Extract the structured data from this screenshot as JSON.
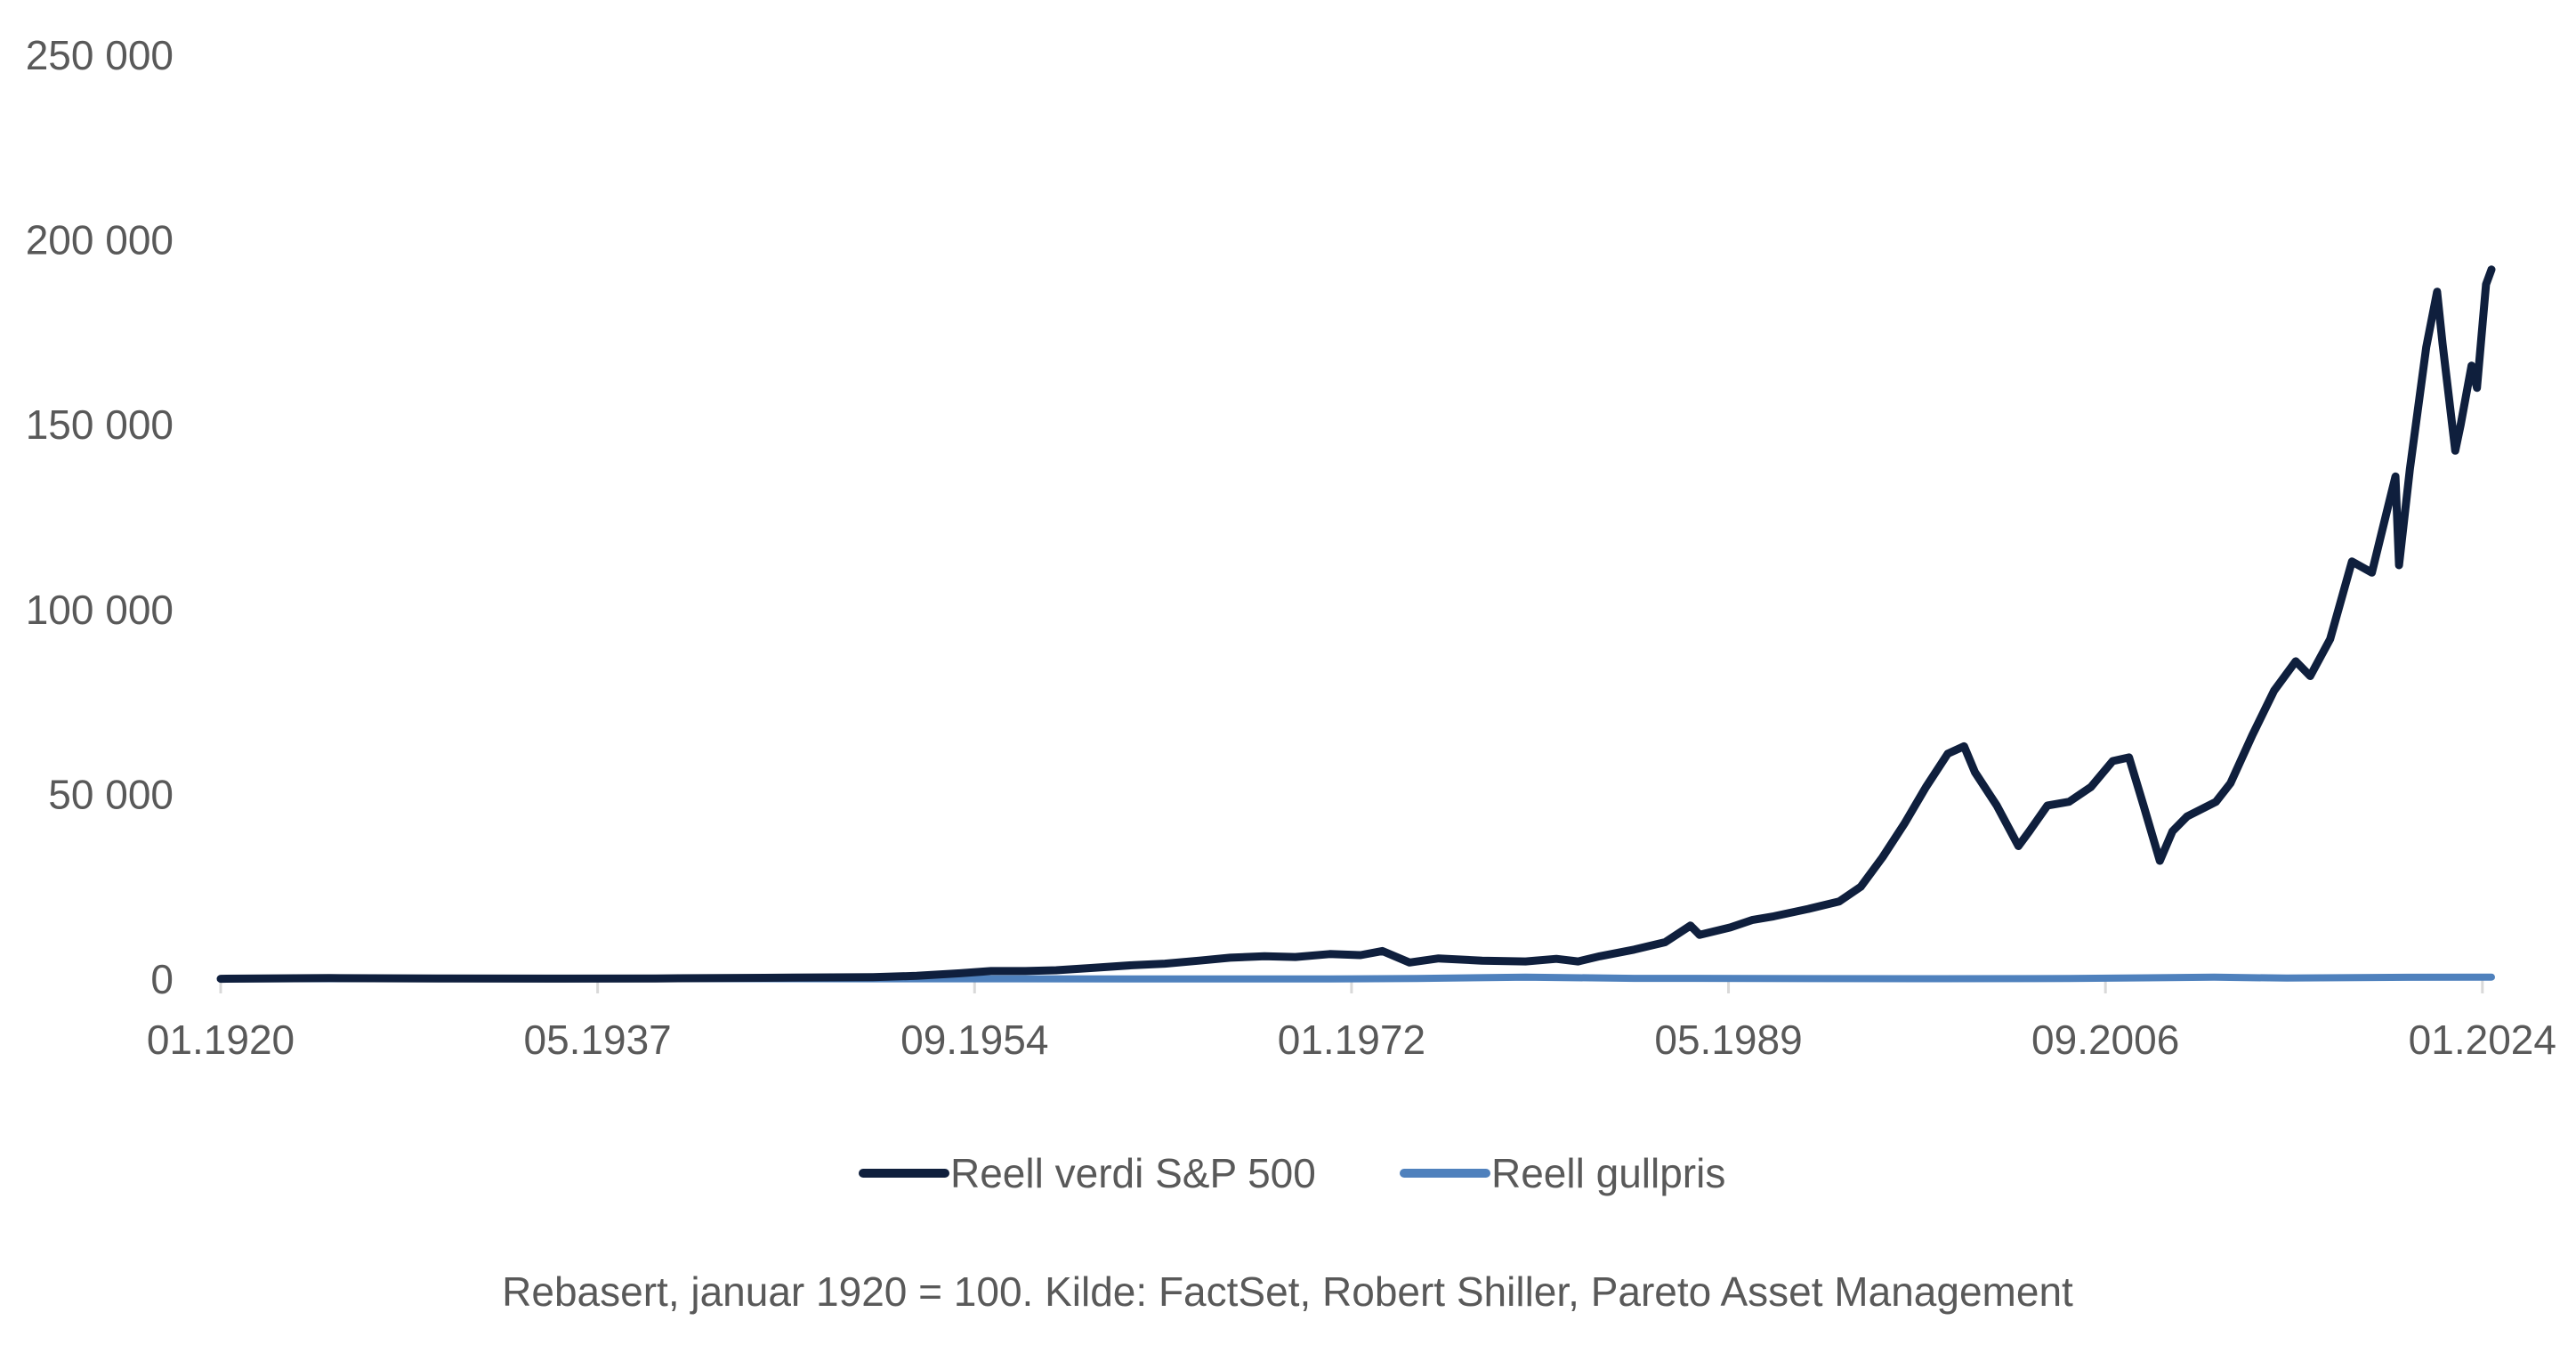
{
  "chart_data": {
    "type": "line",
    "title": "",
    "xlabel": "",
    "ylabel": "",
    "ylim": [
      0,
      250000
    ],
    "y_ticks": [
      0,
      50000,
      100000,
      150000,
      200000,
      250000
    ],
    "y_tick_labels": [
      "0",
      "50 000",
      "100 000",
      "150 000",
      "200 000",
      "250 000"
    ],
    "x_range": [
      "1920-01",
      "2024-06"
    ],
    "x_ticks": [
      "1920-01",
      "1937-05",
      "1954-09",
      "1972-01",
      "1989-05",
      "2006-09",
      "2024-01"
    ],
    "x_tick_labels": [
      "01.1920",
      "05.1937",
      "09.1954",
      "01.1972",
      "05.1989",
      "09.2006",
      "01.2024"
    ],
    "grid": false,
    "legend_position": "bottom",
    "caption": "Rebasert, januar 1920 = 100. Kilde: FactSet, Robert Shiller, Pareto Asset Management",
    "series": [
      {
        "name": "Reell verdi S&P 500",
        "color": "#0f1f3d",
        "x": [
          "1920-01",
          "1925-01",
          "1930-01",
          "1935-01",
          "1940-01",
          "1945-01",
          "1950-01",
          "1952-01",
          "1954-01",
          "1955-06",
          "1957-01",
          "1958-06",
          "1960-01",
          "1962-01",
          "1963-06",
          "1965-01",
          "1966-06",
          "1968-01",
          "1969-06",
          "1971-01",
          "1972-06",
          "1973-06",
          "1974-09",
          "1976-01",
          "1978-01",
          "1980-01",
          "1981-06",
          "1982-06",
          "1983-06",
          "1985-01",
          "1986-06",
          "1987-08",
          "1988-01",
          "1989-06",
          "1990-06",
          "1991-06",
          "1993-01",
          "1994-06",
          "1995-06",
          "1996-06",
          "1997-06",
          "1998-06",
          "1999-06",
          "2000-03",
          "2000-09",
          "2001-09",
          "2002-09",
          "2003-03",
          "2004-01",
          "2005-01",
          "2006-01",
          "2007-01",
          "2007-10",
          "2008-06",
          "2009-03",
          "2009-10",
          "2010-06",
          "2011-10",
          "2012-06",
          "2013-06",
          "2014-06",
          "2015-06",
          "2016-02",
          "2017-01",
          "2018-01",
          "2018-12",
          "2019-06",
          "2020-01",
          "2020-03",
          "2020-09",
          "2021-06",
          "2021-12",
          "2022-03",
          "2022-10",
          "2023-01",
          "2023-07",
          "2023-10",
          "2024-03",
          "2024-06"
        ],
        "values": [
          100,
          300,
          200,
          150,
          200,
          350,
          550,
          900,
          1600,
          2200,
          2200,
          2400,
          3000,
          3800,
          4200,
          5000,
          5800,
          6200,
          6000,
          6800,
          6500,
          7600,
          4500,
          5600,
          5000,
          4800,
          5500,
          4800,
          6200,
          8000,
          10000,
          14500,
          12000,
          14000,
          16000,
          17000,
          19000,
          21000,
          25000,
          33000,
          42000,
          52000,
          61000,
          63000,
          56000,
          47000,
          36000,
          40000,
          47000,
          48000,
          52000,
          59000,
          60000,
          47000,
          32000,
          40000,
          44000,
          48000,
          53000,
          66000,
          78000,
          86000,
          82000,
          92000,
          113000,
          110000,
          122000,
          136000,
          112000,
          138000,
          171000,
          186000,
          172000,
          143000,
          150000,
          166000,
          160000,
          188000,
          192000
        ]
      },
      {
        "name": "Reell gullpris",
        "color": "#4f81bd",
        "x": [
          "1920-01",
          "1934-01",
          "1950-01",
          "1971-01",
          "1975-01",
          "1980-01",
          "1985-01",
          "1999-01",
          "2005-01",
          "2011-09",
          "2015-01",
          "2020-08",
          "2024-06"
        ],
        "values": [
          100,
          160,
          90,
          60,
          200,
          550,
          220,
          110,
          180,
          520,
          280,
          500,
          560
        ]
      }
    ]
  }
}
